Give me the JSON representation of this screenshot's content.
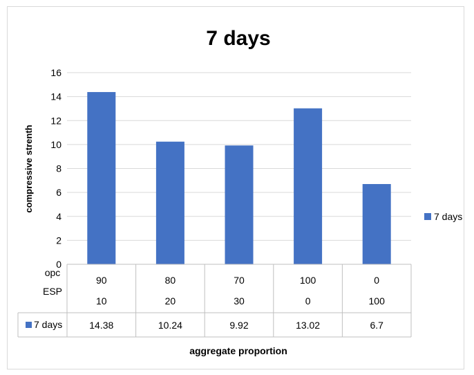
{
  "chart_data": {
    "type": "bar",
    "title": "7 days",
    "ylabel": "compressive strenth",
    "xlabel": "aggregate proportion",
    "ylim": [
      0,
      16
    ],
    "yticks": [
      "0",
      "2",
      "4",
      "6",
      "8",
      "10",
      "12",
      "14",
      "16"
    ],
    "grid": true,
    "legend_position": "right",
    "bar_color": "#4472c4",
    "row_headers": [
      "opc",
      "ESP"
    ],
    "categories": [
      {
        "opc": "90",
        "esp": "10"
      },
      {
        "opc": "80",
        "esp": "20"
      },
      {
        "opc": "70",
        "esp": "30"
      },
      {
        "opc": "100",
        "esp": "0"
      },
      {
        "opc": "0",
        "esp": "100"
      }
    ],
    "series": [
      {
        "name": "7 days",
        "values": [
          14.38,
          10.24,
          9.92,
          13.02,
          6.7
        ]
      }
    ],
    "value_labels": [
      "14.38",
      "10.24",
      "9.92",
      "13.02",
      "6.7"
    ]
  }
}
